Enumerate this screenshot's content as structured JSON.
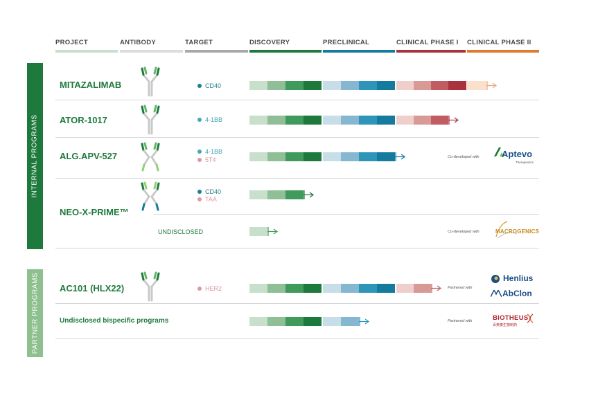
{
  "headers": [
    "PROJECT",
    "ANTIBODY",
    "TARGET",
    "DISCOVERY",
    "PRECLINICAL",
    "CLINICAL PHASE I",
    "CLINICAL PHASE II"
  ],
  "colors": {
    "green": "#1e7a3c",
    "internal_panel": "#1e7a3c",
    "partner_panel": "#8dbf8f",
    "discovery": [
      "#c8dfcc",
      "#8fbf96",
      "#3f9a5c",
      "#1e7a3c"
    ],
    "preclinical": [
      "#c7dde8",
      "#86b7d1",
      "#2f95b8",
      "#147a9e"
    ],
    "phase1": [
      "#efcfcc",
      "#d89a95",
      "#c05d63",
      "#a9323e"
    ],
    "phase2": [
      "#fbe0cc"
    ]
  },
  "sections": {
    "internal": "INTERNAL PROGRAMS",
    "partner": "PARTNER PROGRAMS"
  },
  "programs": [
    {
      "name": "MITAZALIMAB",
      "targets": [
        {
          "label": "CD40",
          "color": "#1b7f8f"
        }
      ],
      "progress": "Clinical Phase II"
    },
    {
      "name": "ATOR-1017",
      "targets": [
        {
          "label": "4-1BB",
          "color": "#4aa6b0"
        }
      ],
      "progress": "Clinical Phase I"
    },
    {
      "name": "ALG.APV-527",
      "targets": [
        {
          "label": "4-1BB",
          "color": "#4aa6b0"
        },
        {
          "label": "5T4",
          "color": "#d99aa0"
        }
      ],
      "progress": "Preclinical",
      "note": "Co-developed with",
      "partner_logo": "Aptevo",
      "partner_logo_sub": "Therapeutics"
    },
    {
      "name": "NEO-X-PRIME™",
      "targets": [
        {
          "label": "CD40",
          "color": "#1b7f8f"
        },
        {
          "label": "TAA",
          "color": "#d99aa0"
        }
      ],
      "progress": "Discovery"
    },
    {
      "name": "",
      "targets": [
        {
          "label": "UNDISCLOSED",
          "color": ""
        }
      ],
      "progress": "Discovery",
      "note": "Co-developed with",
      "partner_logo": "MACROGENICS"
    },
    {
      "name": "AC101 (HLX22)",
      "targets": [
        {
          "label": "HER2",
          "color": "#d99aa0"
        }
      ],
      "progress": "Clinical Phase I",
      "note": "Partnered with",
      "partner_logo": "Henlius",
      "partner_logo_2": "AbClon"
    },
    {
      "name": "Undisclosed bispecific programs",
      "targets": [],
      "progress": "Preclinical",
      "note": "Partnered with",
      "partner_logo": "BIOTHEUS",
      "partner_logo_sub": "百奥泰生物制药"
    }
  ]
}
